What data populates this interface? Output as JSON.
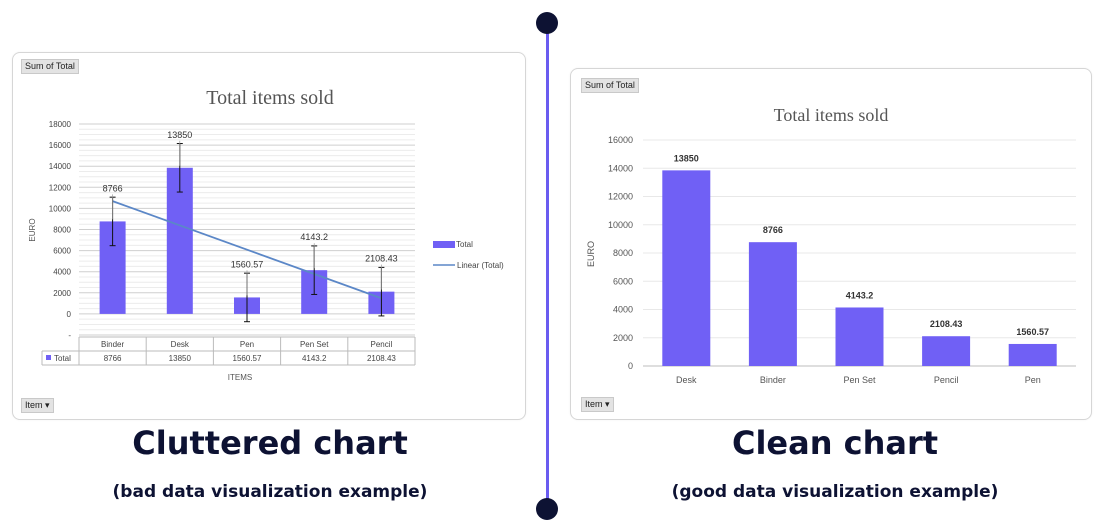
{
  "colors": {
    "bar": "#7060f5",
    "trend": "#5b87c7",
    "dark": "#0d1233",
    "divider": "#6a5cf0"
  },
  "left": {
    "sum_label": "Sum of Total",
    "filter_label": "Item",
    "caption": "Cluttered chart",
    "subcaption": "(bad data visualization example)",
    "table_series_label": "Total"
  },
  "right": {
    "sum_label": "Sum of Total",
    "filter_label": "Item",
    "caption": "Clean chart",
    "subcaption": "(good data visualization example)"
  },
  "chart_data": [
    {
      "type": "bar",
      "title": "Total items sold",
      "xlabel": "ITEMS",
      "ylabel": "EURO",
      "categories": [
        "Binder",
        "Desk",
        "Pen",
        "Pen Set",
        "Pencil"
      ],
      "series": [
        {
          "name": "Total",
          "values": [
            8766,
            13850,
            1560.57,
            4143.2,
            2108.43
          ]
        }
      ],
      "data_labels": [
        "8766",
        "13850",
        "1560.57",
        "4143.2",
        "2108.43"
      ],
      "yticks": [
        "0",
        "2000",
        "4000",
        "6000",
        "8000",
        "10000",
        "12000",
        "14000",
        "16000",
        "18000"
      ],
      "ylim": [
        -2000,
        18000
      ],
      "trendline": "Linear (Total)",
      "error_bars": true,
      "legend": [
        "Total",
        "Linear (Total)"
      ],
      "legend_position": "right",
      "grid": true,
      "data_table": true
    },
    {
      "type": "bar",
      "title": "Total items sold",
      "xlabel": "",
      "ylabel": "EURO",
      "categories": [
        "Desk",
        "Binder",
        "Pen Set",
        "Pencil",
        "Pen"
      ],
      "series": [
        {
          "values": [
            13850,
            8766,
            4143.2,
            2108.43,
            1560.57
          ]
        }
      ],
      "data_labels": [
        "13850",
        "8766",
        "4143.2",
        "2108.43",
        "1560.57"
      ],
      "yticks": [
        "0",
        "2000",
        "4000",
        "6000",
        "8000",
        "10000",
        "12000",
        "14000",
        "16000"
      ],
      "ylim": [
        0,
        16000
      ],
      "grid": true
    }
  ]
}
